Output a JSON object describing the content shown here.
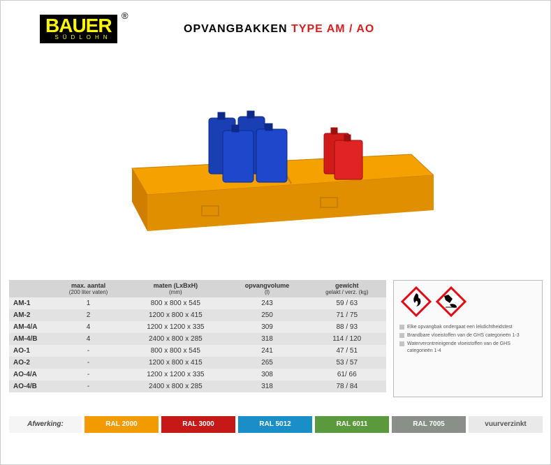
{
  "logo": {
    "brand": "BAUER",
    "sub": "SÜDLOHN",
    "reg": "®"
  },
  "title": {
    "prefix": "OPVANGBAKKEN ",
    "accent": "TYPE AM / AO"
  },
  "table": {
    "headers": [
      {
        "main": "",
        "sub": ""
      },
      {
        "main": "max. aantal",
        "sub": "(200 liter vaten)"
      },
      {
        "main": "maten (LxBxH)",
        "sub": "(mm)"
      },
      {
        "main": "opvangvolume",
        "sub": "(l)"
      },
      {
        "main": "gewicht",
        "sub": "gelakt / verz. (kg)"
      }
    ],
    "rows": [
      {
        "model": "AM-1",
        "capacity": "1",
        "dims": "800 x  800 x 545",
        "volume": "243",
        "weight": "59 / 63"
      },
      {
        "model": "AM-2",
        "capacity": "2",
        "dims": "1200 x  800 x 415",
        "volume": "250",
        "weight": "71 / 75"
      },
      {
        "model": "AM-4/A",
        "capacity": "4",
        "dims": "1200 x 1200 x 335",
        "volume": "309",
        "weight": "88 / 93"
      },
      {
        "model": "AM-4/B",
        "capacity": "4",
        "dims": "2400 x  800 x 285",
        "volume": "318",
        "weight": "114 / 120"
      },
      {
        "model": "AO-1",
        "capacity": "-",
        "dims": "800 x  800 x 545",
        "volume": "241",
        "weight": "47 / 51"
      },
      {
        "model": "AO-2",
        "capacity": "-",
        "dims": "1200 x  800 x 415",
        "volume": "265",
        "weight": "53 / 57"
      },
      {
        "model": "AO-4/A",
        "capacity": "-",
        "dims": "1200 x 1200 x 335",
        "volume": "308",
        "weight": "61/ 66"
      },
      {
        "model": "AO-4/B",
        "capacity": "-",
        "dims": "2400 x  800 x 285",
        "volume": "318",
        "weight": "78 / 84"
      }
    ]
  },
  "info": {
    "bullets": [
      "Elke opvangbak ondergaat een lekdichtheidstest",
      "Brandbare vloeistoffen van de GHS categorieën 1-3",
      "Waterverontreinigende vloeistoffen van de GHS categorieën 1-4"
    ]
  },
  "colors": {
    "label": "Afwerking:",
    "items": [
      {
        "label": "RAL 2000",
        "bg": "#f19b00",
        "muted": false
      },
      {
        "label": "RAL 3000",
        "bg": "#c71818",
        "muted": false
      },
      {
        "label": "RAL 5012",
        "bg": "#1a8fc7",
        "muted": false
      },
      {
        "label": "RAL 6011",
        "bg": "#5b9a3c",
        "muted": false
      },
      {
        "label": "RAL 7005",
        "bg": "#8a8f8a",
        "muted": false
      },
      {
        "label": "vuurverzinkt",
        "bg": "#e9e9e9",
        "muted": true
      }
    ]
  },
  "tray_color": "#f5a100",
  "can_blue": "#1a3fb5",
  "can_red": "#d11a1a"
}
